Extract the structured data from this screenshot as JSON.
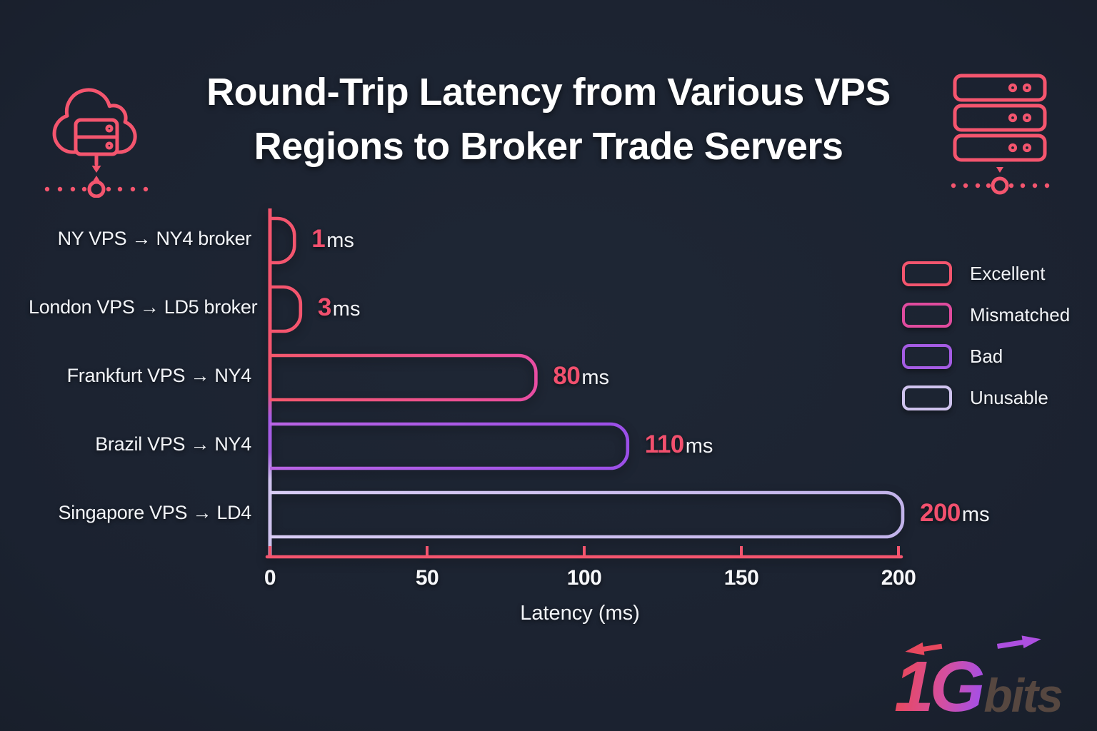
{
  "header": {
    "title_line1": "Round-Trip Latency from Various VPS",
    "title_line2": "Regions to Broker Trade Servers"
  },
  "chart_data": {
    "type": "bar",
    "orientation": "horizontal",
    "title": "Round-Trip Latency from Various VPS Regions to Broker Trade Servers",
    "xlabel": "Latency (ms)",
    "unit": "ms",
    "xlim": [
      0,
      200
    ],
    "xticks": [
      0,
      50,
      100,
      150,
      200
    ],
    "grid": false,
    "legend_position": "right",
    "bars": [
      {
        "label": "NY VPS → NY4 broker",
        "value": 1,
        "rating": "Excellent",
        "color_start": "#f4556e",
        "color_end": "#f4556e"
      },
      {
        "label": "London VPS → LD5 broker",
        "value": 3,
        "rating": "Excellent",
        "color_start": "#f4556e",
        "color_end": "#f4556e"
      },
      {
        "label": "Frankfurt VPS → NY4",
        "value": 80,
        "rating": "Mismatched",
        "color_start": "#f4586c",
        "color_end": "#e84da2"
      },
      {
        "label": "Brazil VPS → NY4",
        "value": 110,
        "rating": "Bad",
        "color_start": "#b964e4",
        "color_end": "#9b4fe8"
      },
      {
        "label": "Singapore VPS → LD4",
        "value": 200,
        "rating": "Unusable",
        "color_start": "#d8ccf4",
        "color_end": "#c2b3ea"
      }
    ],
    "legend": [
      {
        "label": "Excellent",
        "color": "#f4556e"
      },
      {
        "label": "Mismatched",
        "color": "#e04b9e"
      },
      {
        "label": "Bad",
        "color": "#a55ce4"
      },
      {
        "label": "Unusable",
        "color": "#cfc3ee"
      }
    ],
    "axis_color": "#f4556e",
    "value_color": "#f2506e"
  },
  "colors": {
    "background": "#1b2230",
    "accent": "#f4556e",
    "text": "#f4f6f9"
  },
  "logo": {
    "part1": "1G",
    "part2": "bits"
  }
}
